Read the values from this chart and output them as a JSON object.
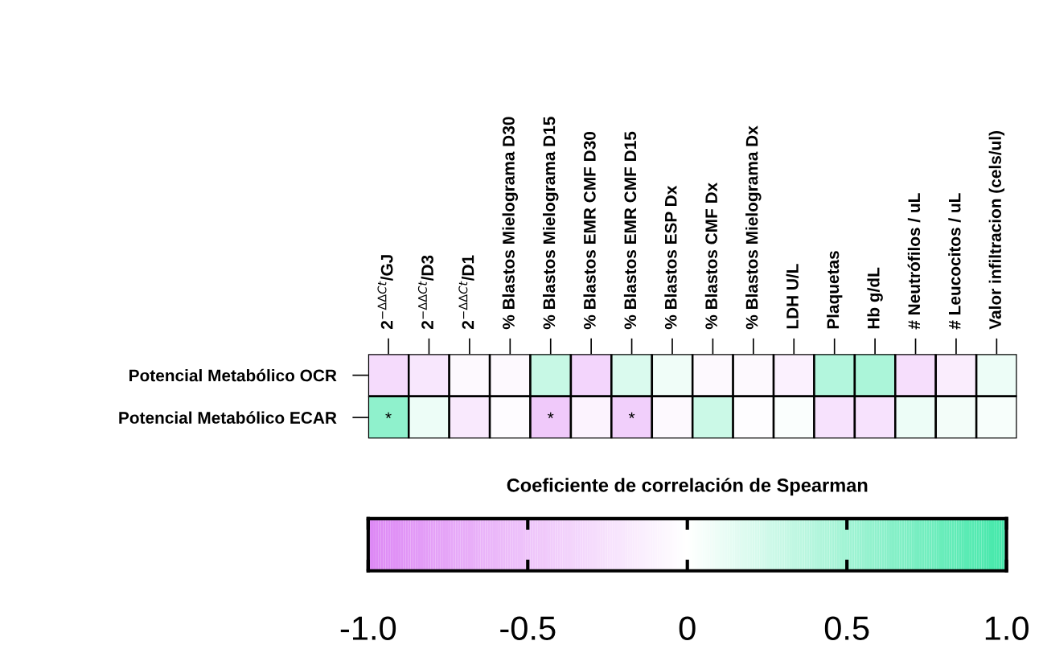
{
  "chart_data": {
    "type": "heatmap",
    "categories": [
      "2$^{−ΔΔCt}$/GJ",
      "2$^{−ΔΔCt}$/D3",
      "2$^{−ΔΔCt}$/D1",
      "% Blastos Mielograma D30",
      "% Blastos Mielograma D15",
      "% Blastos EMR CMF D30",
      "% Blastos EMR CMF D15",
      "% Blastos ESP Dx",
      "% Blastos CMF Dx",
      "% Blastos Mielograma Dx",
      "LDH U/L",
      "Plaquetas",
      "Hb g/dL",
      "# Neutrófilos / uL",
      "# Leucocitos / uL",
      "Valor infiltracion (cels/ul)"
    ],
    "y_categories": [
      "Potencial Metabólico OCR",
      "Potencial Metabólico ECAR"
    ],
    "cells": [
      [
        -0.3,
        -0.2,
        -0.05,
        -0.05,
        0.3,
        -0.35,
        0.2,
        0.08,
        -0.05,
        -0.05,
        -0.12,
        0.4,
        0.45,
        -0.28,
        -0.15,
        0.1
      ],
      [
        0.6,
        0.1,
        -0.18,
        -0.03,
        -0.45,
        -0.1,
        -0.4,
        -0.05,
        0.28,
        -0.02,
        0.03,
        -0.25,
        -0.25,
        0.1,
        0.07,
        0.04
      ]
    ],
    "cell_labels": [
      [
        null,
        null,
        null,
        null,
        null,
        null,
        null,
        null,
        null,
        null,
        null,
        null,
        null,
        null,
        null,
        null
      ],
      [
        "*",
        null,
        null,
        null,
        "*",
        null,
        "*",
        null,
        null,
        null,
        null,
        null,
        null,
        null,
        null,
        null
      ]
    ],
    "colors": [
      "#dd88f5",
      "#ffffff",
      "#44e8aa"
    ],
    "clabel": "Coeficiente de correlación de Spearman",
    "clim": [
      -1,
      1
    ],
    "cticks": [
      {
        "value": -1,
        "label": "-1.0"
      },
      {
        "value": -0.5,
        "label": "-0.5"
      },
      0,
      {
        "value": 0.5,
        "label": "0.5"
      },
      {
        "value": 1,
        "label": "1.0"
      }
    ]
  }
}
